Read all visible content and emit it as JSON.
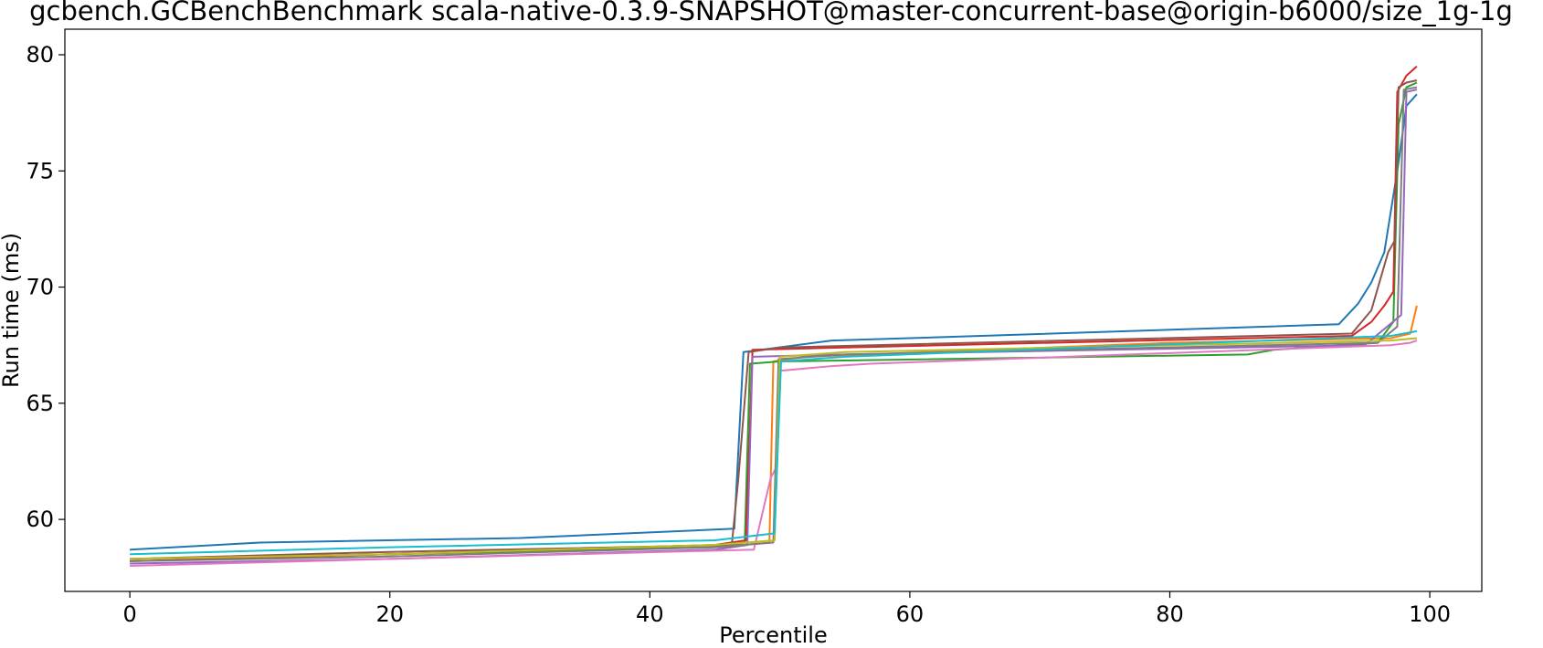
{
  "chart_data": {
    "type": "line",
    "title": "gcbench.GCBenchBenchmark scala-native-0.3.9-SNAPSHOT@master-concurrent-base@origin-b6000/size_1g-1g",
    "xlabel": "Percentile",
    "ylabel": "Run time (ms)",
    "xlim": [
      -5,
      104
    ],
    "ylim": [
      56.9,
      81.1
    ],
    "xticks": [
      0,
      20,
      40,
      60,
      80,
      100
    ],
    "xtick_labels": [
      "0",
      "20",
      "40",
      "60",
      "80",
      "100"
    ],
    "yticks": [
      60,
      65,
      70,
      75,
      80
    ],
    "ytick_labels": [
      "60",
      "65",
      "70",
      "75",
      "80"
    ],
    "grid": false,
    "legend": "none",
    "series": [
      {
        "color": "#1f77b4",
        "x": [
          0,
          10,
          30,
          46.5,
          47.2,
          54,
          60,
          93,
          94.5,
          95.5,
          96.5,
          97.5,
          98.2,
          99
        ],
        "y": [
          58.7,
          59.0,
          59.2,
          59.6,
          67.2,
          67.7,
          67.8,
          68.4,
          69.3,
          70.2,
          71.5,
          75.0,
          77.8,
          78.3
        ]
      },
      {
        "color": "#ff7f0e",
        "x": [
          0,
          20,
          45,
          49.2,
          49.5,
          52,
          80,
          97,
          98.5,
          99
        ],
        "y": [
          58.3,
          58.5,
          58.8,
          59.0,
          66.8,
          67.0,
          67.6,
          67.8,
          68.0,
          69.2
        ]
      },
      {
        "color": "#2ca02c",
        "x": [
          0,
          20,
          45,
          47.3,
          47.7,
          50,
          86,
          88,
          96,
          97.2,
          97.6,
          98.2,
          99
        ],
        "y": [
          58.3,
          58.5,
          58.8,
          59.0,
          66.7,
          66.8,
          67.1,
          67.3,
          67.6,
          68.5,
          77.0,
          78.6,
          78.8
        ]
      },
      {
        "color": "#d62728",
        "x": [
          0,
          20,
          45,
          47.4,
          47.9,
          55,
          94,
          95.5,
          96.5,
          97.2,
          97.5,
          98.2,
          99
        ],
        "y": [
          58.2,
          58.5,
          58.9,
          59.1,
          67.3,
          67.4,
          67.9,
          68.5,
          69.2,
          69.8,
          78.4,
          79.1,
          79.5
        ]
      },
      {
        "color": "#9467bd",
        "x": [
          0,
          20,
          45,
          47.5,
          47.9,
          55,
          95,
          97.8,
          98.2,
          99
        ],
        "y": [
          58.1,
          58.3,
          58.7,
          58.9,
          67.0,
          67.1,
          67.5,
          68.8,
          78.4,
          78.5
        ]
      },
      {
        "color": "#8c564b",
        "x": [
          0,
          20,
          46.3,
          46.8,
          47.6,
          50,
          94,
          95.5,
          96.8,
          97.3,
          97.6,
          98.2,
          99
        ],
        "y": [
          58.3,
          58.6,
          58.9,
          61.7,
          67.2,
          67.4,
          68.0,
          69.0,
          71.5,
          72.0,
          78.6,
          78.8,
          78.9
        ]
      },
      {
        "color": "#e377c2",
        "x": [
          0,
          20,
          48,
          49.3,
          49.7,
          50,
          54,
          57,
          97,
          98.5,
          99
        ],
        "y": [
          58.0,
          58.3,
          58.7,
          61.8,
          62.2,
          66.4,
          66.6,
          66.7,
          67.5,
          67.6,
          67.7
        ]
      },
      {
        "color": "#7f7f7f",
        "x": [
          0,
          20,
          45,
          49.5,
          49.9,
          55,
          96,
          97.5,
          98.0,
          99
        ],
        "y": [
          58.2,
          58.4,
          58.8,
          59.0,
          66.9,
          67.1,
          67.6,
          68.3,
          78.5,
          78.6
        ]
      },
      {
        "color": "#bcbd22",
        "x": [
          0,
          20,
          45,
          49.6,
          50.0,
          55,
          97,
          99
        ],
        "y": [
          58.3,
          58.5,
          58.9,
          59.1,
          67.0,
          67.2,
          67.7,
          67.8
        ]
      },
      {
        "color": "#17becf",
        "x": [
          0,
          20,
          45,
          49.6,
          50.1,
          55,
          97,
          99
        ],
        "y": [
          58.5,
          58.8,
          59.1,
          59.4,
          66.8,
          67.0,
          67.9,
          68.1
        ]
      }
    ]
  }
}
